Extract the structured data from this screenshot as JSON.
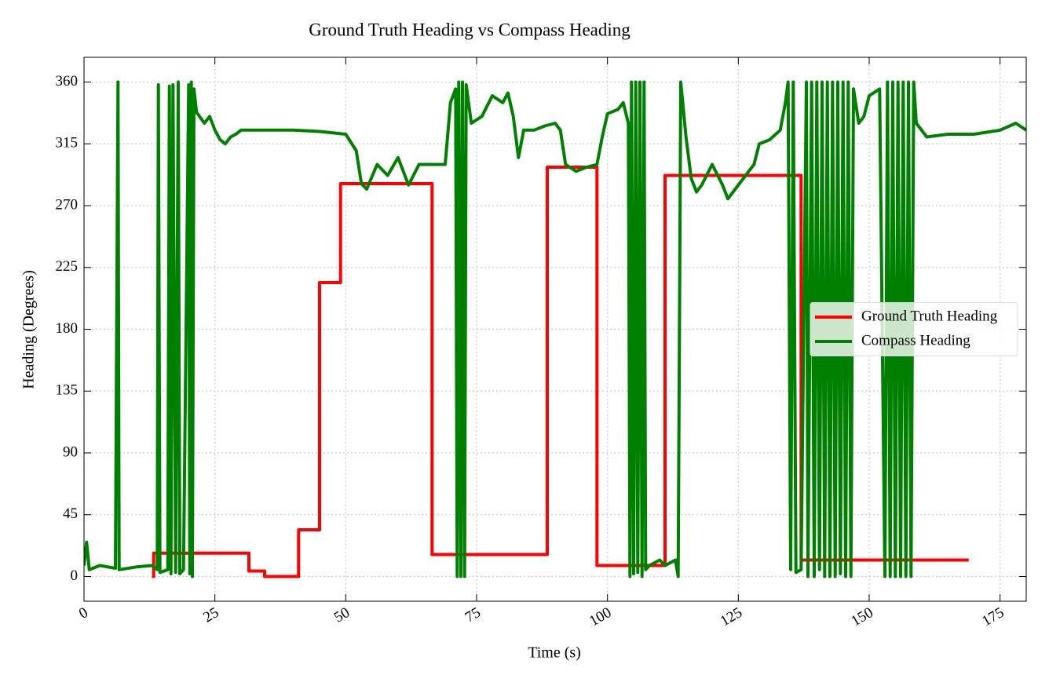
{
  "chart_data": {
    "type": "line",
    "title": "Ground Truth Heading vs Compass Heading",
    "x_label": "Time (s)",
    "y_label": "Heading (Degrees)",
    "xlim": [
      0,
      180
    ],
    "ylim": [
      -18,
      378
    ],
    "xticks": [
      0,
      25,
      50,
      75,
      100,
      125,
      150,
      175
    ],
    "yticks": [
      0,
      45,
      90,
      135,
      180,
      225,
      270,
      315,
      360
    ],
    "grid": true,
    "legend": "center right",
    "series": [
      {
        "name": "Ground Truth Heading",
        "color": "#ff0000",
        "x": [
          13,
          13.3,
          13.3,
          31.5,
          31.5,
          34.5,
          34.5,
          41,
          41,
          45,
          45,
          49,
          49,
          66.5,
          66.5,
          88.5,
          88.5,
          98,
          98,
          111,
          111,
          137,
          137,
          169
        ],
        "values": [
          0,
          0,
          17,
          17,
          4,
          4,
          0,
          0,
          34,
          34,
          214,
          214,
          286,
          286,
          16,
          16,
          298,
          298,
          8,
          8,
          292,
          292,
          12,
          12
        ]
      },
      {
        "name": "Compass Heading",
        "color": "#008000",
        "x": [
          0,
          0.5,
          1,
          3,
          6,
          6.5,
          6.7,
          10,
          13,
          14,
          14.2,
          14.5,
          16,
          16.3,
          16.6,
          17,
          17.5,
          18,
          18.3,
          19,
          20,
          20.2,
          20.5,
          20.7,
          21,
          21.5,
          23,
          24,
          25,
          26,
          27,
          28,
          29,
          30,
          35,
          40,
          45,
          50,
          52,
          53,
          54,
          56,
          58,
          60,
          62,
          64,
          66,
          69,
          70,
          71,
          71.3,
          71.6,
          72,
          72.3,
          72.7,
          73,
          74,
          76,
          78,
          80,
          81,
          82,
          83,
          84,
          86,
          88,
          90,
          91,
          92,
          94,
          96,
          98,
          99,
          100,
          102,
          103,
          104,
          104.3,
          104.6,
          105,
          105.4,
          105.8,
          106.2,
          106.6,
          107,
          107.3,
          108,
          110,
          111,
          113,
          113.5,
          114,
          115,
          116,
          117,
          118,
          120,
          122,
          123,
          124,
          126,
          128,
          129,
          131,
          133,
          134,
          134.5,
          135,
          135.5,
          136,
          137,
          138,
          138.3,
          139,
          139.5,
          140,
          140.5,
          141,
          141.5,
          142,
          142.5,
          143,
          143.5,
          144,
          144.5,
          145,
          145.5,
          146,
          146.5,
          147,
          148,
          149,
          150,
          152,
          153,
          153.5,
          154,
          154.5,
          155,
          155.5,
          156,
          156.5,
          157,
          157.5,
          158,
          158.5,
          159,
          161,
          165,
          170,
          175,
          178,
          180
        ],
        "values": [
          8,
          25,
          5,
          8,
          6,
          360,
          5,
          7,
          8,
          5,
          358,
          3,
          5,
          357,
          2,
          358,
          3,
          360,
          2,
          5,
          358,
          2,
          360,
          0,
          355,
          338,
          330,
          335,
          325,
          318,
          315,
          320,
          322,
          325,
          325,
          325,
          324,
          322,
          310,
          286,
          282,
          300,
          292,
          305,
          285,
          300,
          300,
          300,
          345,
          355,
          0,
          360,
          0,
          360,
          0,
          358,
          330,
          335,
          350,
          345,
          352,
          335,
          305,
          325,
          325,
          328,
          330,
          325,
          300,
          295,
          298,
          300,
          320,
          337,
          340,
          345,
          330,
          0,
          360,
          2,
          360,
          3,
          360,
          0,
          360,
          5,
          8,
          12,
          8,
          12,
          0,
          360,
          320,
          290,
          280,
          285,
          300,
          285,
          275,
          280,
          290,
          300,
          315,
          318,
          325,
          345,
          360,
          5,
          360,
          3,
          5,
          360,
          0,
          360,
          0,
          360,
          5,
          360,
          0,
          360,
          0,
          360,
          0,
          360,
          2,
          360,
          0,
          360,
          0,
          355,
          330,
          335,
          350,
          355,
          0,
          360,
          0,
          360,
          0,
          360,
          0,
          360,
          0,
          360,
          0,
          360,
          330,
          320,
          322,
          322,
          325,
          330,
          325
        ]
      }
    ]
  }
}
